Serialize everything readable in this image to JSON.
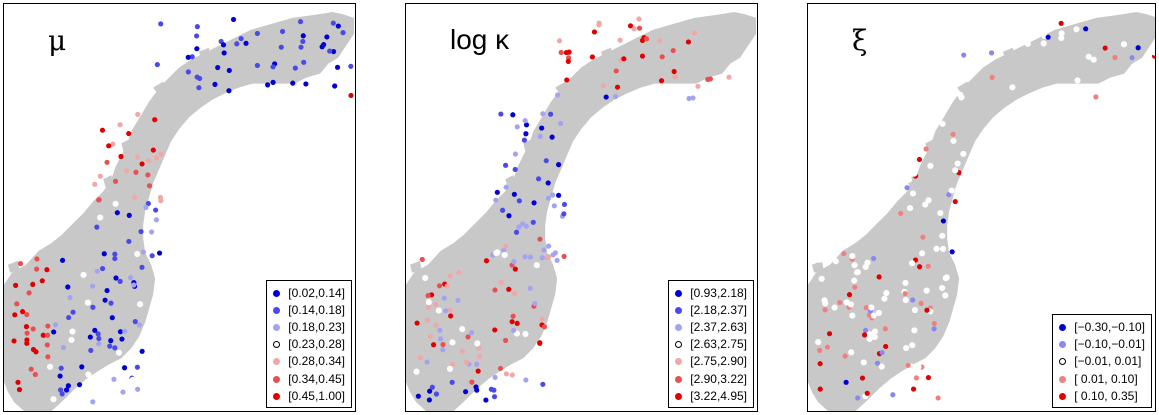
{
  "panels": [
    {
      "title": "μ",
      "legend": [
        {
          "label": "[0.02,0.14]",
          "color": "#0000d6"
        },
        {
          "label": "[0.14,0.18]",
          "color": "#4a4ae8"
        },
        {
          "label": "[0.18,0.23]",
          "color": "#a3a3f2"
        },
        {
          "label": "[0.23,0.28]",
          "color": "#ffffff"
        },
        {
          "label": "[0.28,0.34]",
          "color": "#f2a6a6"
        },
        {
          "label": "[0.34,0.45]",
          "color": "#e85050"
        },
        {
          "label": "[0.45,1.00]",
          "color": "#e00000"
        }
      ]
    },
    {
      "title": "log κ",
      "legend": [
        {
          "label": "[0.93,2.18]",
          "color": "#0000d6"
        },
        {
          "label": "[2.18,2.37]",
          "color": "#4a4ae8"
        },
        {
          "label": "[2.37,2.63]",
          "color": "#a3a3f2"
        },
        {
          "label": "[2.63,2.75]",
          "color": "#ffffff"
        },
        {
          "label": "[2.75,2.90]",
          "color": "#f2a6a6"
        },
        {
          "label": "[2.90,3.22]",
          "color": "#e85050"
        },
        {
          "label": "[3.22,4.95]",
          "color": "#e00000"
        }
      ]
    },
    {
      "title": "ξ",
      "legend": [
        {
          "label": "[−0.30,−0.10]",
          "color": "#0000d6"
        },
        {
          "label": "[−0.10,−0.01]",
          "color": "#8888f0"
        },
        {
          "label": "[−0.01, 0.01]",
          "color": "#ffffff"
        },
        {
          "label": "[ 0.01, 0.10]",
          "color": "#f08080"
        },
        {
          "label": "[ 0.10, 0.35]",
          "color": "#e00000"
        }
      ]
    }
  ],
  "land_color": "#c8c8c8"
}
